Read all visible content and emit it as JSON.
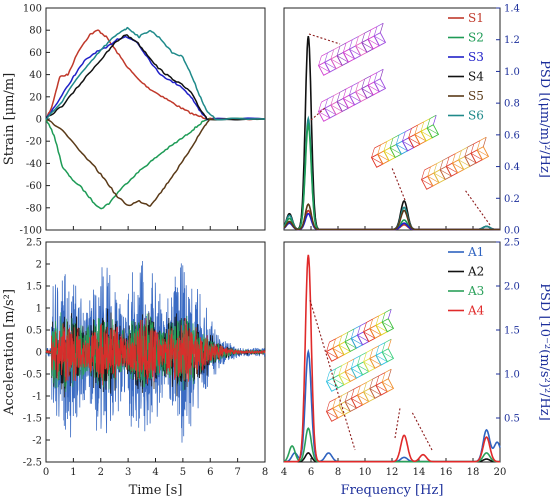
{
  "colors": {
    "S1": "#c0392b",
    "S2": "#1e9b56",
    "S3": "#2020c8",
    "S4": "#111111",
    "S5": "#5a3a18",
    "S6": "#1f8a8a",
    "A1": "#2f63c0",
    "A2": "#111111",
    "A3": "#2aa05a",
    "A4": "#e02a2a",
    "right_axis": "#1c2f9b"
  },
  "chart_data": [
    {
      "type": "line",
      "panel": "top-left",
      "xlabel": "",
      "ylabel": "Strain [μm/m]",
      "xlim": [
        0,
        8
      ],
      "ylim": [
        -100,
        100
      ],
      "yticks": [
        -100,
        -80,
        -60,
        -40,
        -20,
        0,
        20,
        40,
        60,
        80,
        100
      ],
      "xticks": [
        0,
        1,
        2,
        3,
        4,
        5,
        6,
        7,
        8
      ],
      "series": [
        {
          "name": "S1",
          "x": [
            0,
            0.2,
            0.5,
            0.8,
            1.2,
            1.6,
            1.9,
            2.2,
            2.6,
            3.0,
            3.4,
            3.8,
            4.2,
            4.6,
            5.0,
            5.4,
            5.8,
            6.0,
            6.3,
            8
          ],
          "y": [
            0,
            10,
            38,
            40,
            62,
            76,
            80,
            74,
            60,
            46,
            35,
            27,
            21,
            15,
            9,
            4,
            1,
            0,
            0,
            0
          ]
        },
        {
          "name": "S2",
          "x": [
            0,
            0.3,
            0.6,
            0.9,
            1.3,
            1.7,
            2.0,
            2.3,
            2.7,
            3.1,
            3.5,
            3.9,
            4.3,
            4.7,
            5.1,
            5.4,
            5.7,
            6.0,
            8
          ],
          "y": [
            0,
            -15,
            -43,
            -53,
            -62,
            -74,
            -81,
            -76,
            -64,
            -54,
            -45,
            -37,
            -29,
            -22,
            -15,
            -9,
            -3,
            0,
            0
          ]
        },
        {
          "name": "S3",
          "x": [
            0,
            0.5,
            1.0,
            1.4,
            1.8,
            2.2,
            2.6,
            2.9,
            3.3,
            3.7,
            4.1,
            4.5,
            4.9,
            5.3,
            5.6,
            5.9,
            8
          ],
          "y": [
            0,
            18,
            38,
            52,
            60,
            64,
            72,
            74,
            70,
            56,
            42,
            35,
            30,
            20,
            8,
            0,
            0
          ]
        },
        {
          "name": "S4",
          "x": [
            0,
            0.6,
            1.2,
            1.7,
            2.1,
            2.5,
            2.9,
            3.3,
            3.7,
            4.1,
            4.5,
            4.9,
            5.3,
            5.6,
            5.9,
            8
          ],
          "y": [
            0,
            12,
            30,
            45,
            56,
            68,
            76,
            70,
            58,
            46,
            38,
            32,
            24,
            10,
            0,
            0
          ]
        },
        {
          "name": "S5",
          "x": [
            0,
            0.6,
            1.2,
            1.8,
            2.2,
            2.6,
            3.0,
            3.4,
            3.8,
            4.2,
            4.6,
            5.0,
            5.4,
            5.8,
            6.0,
            8
          ],
          "y": [
            0,
            -10,
            -28,
            -44,
            -56,
            -70,
            -78,
            -74,
            -78,
            -66,
            -52,
            -38,
            -22,
            -6,
            0,
            0
          ]
        },
        {
          "name": "S6",
          "x": [
            0,
            0.6,
            1.1,
            1.6,
            2.0,
            2.4,
            2.8,
            3.0,
            3.4,
            3.8,
            4.2,
            4.6,
            5.0,
            5.3,
            5.6,
            5.9,
            6.2,
            8
          ],
          "y": [
            0,
            16,
            36,
            50,
            62,
            72,
            80,
            82,
            74,
            80,
            72,
            60,
            56,
            40,
            22,
            6,
            0,
            0
          ]
        }
      ]
    },
    {
      "type": "line",
      "panel": "top-right",
      "xlabel": "",
      "ylabel": "PSD [(μm/m)²/Hz]",
      "xlim": [
        4,
        20
      ],
      "ylim": [
        0,
        1.4
      ],
      "yticks": [
        0,
        0.2,
        0.4,
        0.6,
        0.8,
        1.0,
        1.2,
        1.4
      ],
      "xticks": [
        4,
        6,
        8,
        10,
        12,
        14,
        16,
        18,
        20
      ],
      "legend": {
        "placement": "top-right",
        "entries": [
          "S1",
          "S2",
          "S3",
          "S4",
          "S5",
          "S6"
        ]
      },
      "series": [
        {
          "name": "S4",
          "peaks": [
            [
              4.4,
              0.1
            ],
            [
              5.8,
              1.22
            ],
            [
              12.9,
              0.18
            ],
            [
              19.0,
              0.02
            ]
          ]
        },
        {
          "name": "S6",
          "peaks": [
            [
              4.4,
              0.09
            ],
            [
              5.8,
              0.7
            ],
            [
              12.9,
              0.14
            ],
            [
              19.0,
              0.02
            ]
          ]
        },
        {
          "name": "S2",
          "peaks": [
            [
              4.4,
              0.07
            ],
            [
              5.8,
              0.66
            ],
            [
              12.9,
              0.06
            ]
          ]
        },
        {
          "name": "S1",
          "peaks": [
            [
              4.4,
              0.05
            ],
            [
              5.8,
              0.12
            ],
            [
              12.9,
              0.03
            ]
          ]
        },
        {
          "name": "S3",
          "peaks": [
            [
              4.4,
              0.04
            ],
            [
              5.8,
              0.1
            ],
            [
              12.9,
              0.04
            ]
          ]
        },
        {
          "name": "S5",
          "peaks": [
            [
              4.4,
              0.05
            ],
            [
              5.8,
              0.16
            ],
            [
              12.9,
              0.12
            ]
          ]
        }
      ]
    },
    {
      "type": "line",
      "panel": "bottom-left",
      "xlabel": "Time [s]",
      "ylabel": "Acceleration [m/s²]",
      "xlim": [
        0,
        8
      ],
      "ylim": [
        -2.5,
        2.5
      ],
      "yticks": [
        -2.5,
        -2,
        -1.5,
        -1,
        -0.5,
        0,
        0.5,
        1,
        1.5,
        2,
        2.5
      ],
      "ytick_labels": [
        "-2.5",
        "-2",
        "-1.5",
        "-1",
        "-0.5",
        "0",
        "0.5",
        "1",
        "1.5",
        "2",
        "2.5"
      ],
      "xticks": [
        0,
        1,
        2,
        3,
        4,
        5,
        6,
        7,
        8
      ],
      "series": [
        {
          "name": "A1",
          "amplitude": 2.2
        },
        {
          "name": "A2",
          "amplitude": 1.1
        },
        {
          "name": "A3",
          "amplitude": 1.0
        },
        {
          "name": "A4",
          "amplitude": 0.8
        }
      ]
    },
    {
      "type": "line",
      "panel": "bottom-right",
      "xlabel": "Frequency [Hz]",
      "ylabel": "PSD [10⁻²(m/s²)²/Hz]",
      "xlim": [
        4,
        20
      ],
      "ylim": [
        0,
        2.5
      ],
      "yticks": [
        0.5,
        1.0,
        1.5,
        2.0,
        2.5
      ],
      "xticks": [
        4,
        6,
        8,
        10,
        12,
        14,
        16,
        18,
        20
      ],
      "legend": {
        "placement": "top-right",
        "entries": [
          "A1",
          "A2",
          "A3",
          "A4"
        ]
      },
      "series": [
        {
          "name": "A1",
          "peaks": [
            [
              4.8,
              0.1
            ],
            [
              5.8,
              1.25
            ],
            [
              7.3,
              0.1
            ],
            [
              12.9,
              0.05
            ],
            [
              19.0,
              0.36
            ],
            [
              19.8,
              0.22
            ]
          ]
        },
        {
          "name": "A2",
          "peaks": [
            [
              5.8,
              0.1
            ],
            [
              19.0,
              0.03
            ]
          ]
        },
        {
          "name": "A3",
          "peaks": [
            [
              4.6,
              0.18
            ],
            [
              5.8,
              0.38
            ],
            [
              19.0,
              0.1
            ]
          ]
        },
        {
          "name": "A4",
          "peaks": [
            [
              5.8,
              2.35
            ],
            [
              12.9,
              0.3
            ],
            [
              14.3,
              0.08
            ],
            [
              19.0,
              0.28
            ]
          ]
        }
      ]
    }
  ]
}
